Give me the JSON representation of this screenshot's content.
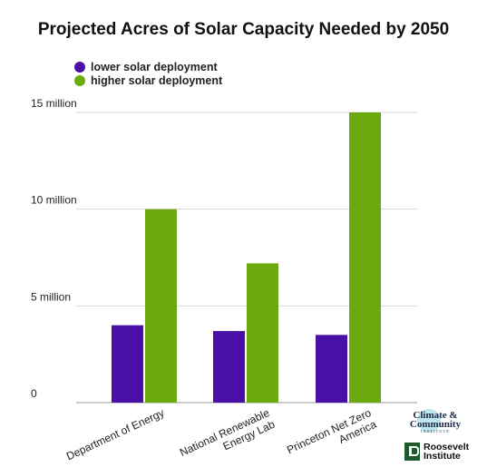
{
  "chart_data": {
    "type": "bar",
    "title": "Projected Acres of Solar Capacity Needed by 2050",
    "categories": [
      "Department of Energy",
      "National Renewable Energy Lab",
      "Princeton Net Zero America"
    ],
    "series": [
      {
        "name": "lower solar deployment",
        "color": "#4a0fa6",
        "values": [
          4000000,
          3700000,
          3500000
        ]
      },
      {
        "name": "higher solar deployment",
        "color": "#6aaa0f",
        "values": [
          10000000,
          7200000,
          15000000
        ]
      }
    ],
    "y_ticks": [
      {
        "value": 0,
        "label": "0"
      },
      {
        "value": 5000000,
        "label": "5 million"
      },
      {
        "value": 10000000,
        "label": "10 million"
      },
      {
        "value": 15000000,
        "label": "15 million"
      }
    ],
    "ylim": [
      0,
      15000000
    ],
    "grid": true,
    "legend": "top-left"
  },
  "logos": {
    "climate_community": {
      "line1": "Climate &",
      "line2": "Community",
      "line3": "INSTITUTE",
      "color": "#bfe6ee"
    },
    "roosevelt": {
      "line1": "Roosevelt",
      "line2": "Institute",
      "color": "#1f5a2e"
    }
  }
}
